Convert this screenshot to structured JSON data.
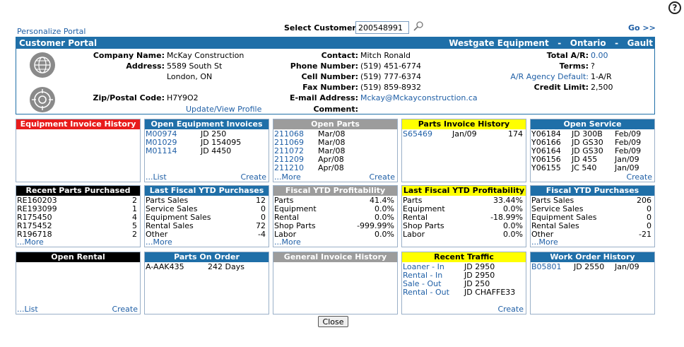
{
  "top": {
    "personalize": "Personalize Portal",
    "select_label": "Select Customer:",
    "customer_value": "200548991",
    "go": "Go >>",
    "help": "?"
  },
  "portal": {
    "title": "Customer Portal",
    "branch": "Westgate Equipment   -   Ontario   -   Gault",
    "company_label": "Company Name:",
    "company": "McKay Construction",
    "address_label": "Address:",
    "address1": "5589 South St",
    "address2": "London, ON",
    "zip_label": "Zip/Postal Code:",
    "zip": "H7Y9O2",
    "update_profile": "Update/View Profile",
    "contact_label": "Contact:",
    "contact": "Mitch Ronald",
    "phone_label": "Phone Number:",
    "phone": "(519) 451-6774",
    "cell_label": "Cell Number:",
    "cell": "(519) 777-6374",
    "fax_label": "Fax Number:",
    "fax": "(519) 859-8932",
    "email_label": "E-mail Address:",
    "email": "Mckay@Mckayconstruction.ca",
    "comment_label": "Comment:",
    "total_ar_label": "Total A/R:",
    "total_ar": "0.00",
    "terms_label": "Terms:",
    "terms": "?",
    "ar_agency_label": "A/R Agency Default:",
    "ar_agency": "1-A/R",
    "credit_label": "Credit Limit:",
    "credit": "2,500"
  },
  "panels": {
    "equip_invoice": {
      "title": "Equipment Invoice History"
    },
    "open_equip": {
      "title": "Open Equipment Invoices",
      "rows": [
        [
          "M00974",
          "JD 250"
        ],
        [
          "M01029",
          "JD 154095"
        ],
        [
          "M01114",
          "JD 4450"
        ]
      ],
      "list": "...List",
      "create": "Create"
    },
    "open_parts": {
      "title": "Open Parts",
      "rows": [
        [
          "211068",
          "Mar/08"
        ],
        [
          "211069",
          "Mar/08"
        ],
        [
          "211072",
          "Mar/08"
        ],
        [
          "211209",
          "Apr/08"
        ],
        [
          "211210",
          "Apr/08"
        ]
      ],
      "more": "...More",
      "create": "Create"
    },
    "parts_invoice": {
      "title": "Parts Invoice History",
      "rows": [
        [
          "S65469",
          "Jan/09",
          "174"
        ]
      ]
    },
    "open_service": {
      "title": "Open Service",
      "rows": [
        [
          "Y06184",
          "JD 300B",
          "Feb/09"
        ],
        [
          "Y06166",
          "JD GS30",
          "Feb/09"
        ],
        [
          "Y06164",
          "JD GS30",
          "Feb/09"
        ],
        [
          "Y06156",
          "JD 455",
          "Jan/09"
        ],
        [
          "Y06155",
          "JC 540",
          "Jan/09"
        ]
      ],
      "create": "Create"
    },
    "recent_parts": {
      "title": "Recent Parts Purchased",
      "rows": [
        [
          "RE160203",
          "2"
        ],
        [
          "RE193099",
          "1"
        ],
        [
          "R175450",
          "4"
        ],
        [
          "R175452",
          "5"
        ],
        [
          "R196718",
          "2"
        ]
      ],
      "more": "...More"
    },
    "last_fiscal_ytd": {
      "title": "Last Fiscal YTD Purchases",
      "rows": [
        [
          "Parts Sales",
          "12"
        ],
        [
          "Service Sales",
          "0"
        ],
        [
          "Equipment Sales",
          "0"
        ],
        [
          "Rental Sales",
          "72"
        ],
        [
          "Other",
          "-4"
        ]
      ],
      "more": "...More"
    },
    "fiscal_profit": {
      "title": "Fiscal YTD Profitability",
      "rows": [
        [
          "Parts",
          "41.4%"
        ],
        [
          "Equipment",
          "0.0%"
        ],
        [
          "Rental",
          "0.0%"
        ],
        [
          "Shop Parts",
          "-999.99%"
        ],
        [
          "Labor",
          "0.0%"
        ]
      ],
      "more": "...More"
    },
    "last_fiscal_profit": {
      "title": "Last Fiscal YTD Profitability",
      "rows": [
        [
          "Parts",
          "33.44%"
        ],
        [
          "Equipment",
          "0.0%"
        ],
        [
          "Rental",
          "-18.99%"
        ],
        [
          "Shop Parts",
          "0.0%"
        ],
        [
          "Labor",
          "0.0%"
        ]
      ]
    },
    "fiscal_ytd": {
      "title": "Fiscal YTD Purchases",
      "rows": [
        [
          "Parts Sales",
          "206"
        ],
        [
          "Service Sales",
          "0"
        ],
        [
          "Equipment Sales",
          "0"
        ],
        [
          "Rental Sales",
          "0"
        ],
        [
          "Other",
          "-21"
        ]
      ],
      "more": "...More"
    },
    "open_rental": {
      "title": "Open Rental",
      "list": "...List",
      "create": "Create"
    },
    "parts_on_order": {
      "title": "Parts On Order",
      "rows": [
        [
          "A-AAK435",
          "242 Days"
        ]
      ]
    },
    "general_invoice": {
      "title": "General Invoice History"
    },
    "recent_traffic": {
      "title": "Recent Traffic",
      "rows": [
        [
          "Loaner - In",
          "JD 2950"
        ],
        [
          "Rental - In",
          "JD 2950"
        ],
        [
          "Sale - Out",
          "JD 250"
        ],
        [
          "Rental - Out",
          "JD CHAFFE33"
        ]
      ],
      "create": "Create"
    },
    "work_order": {
      "title": "Work Order History",
      "rows": [
        [
          "B05801",
          "JD 2550",
          "Jan/09"
        ]
      ]
    }
  },
  "close_label": "Close"
}
